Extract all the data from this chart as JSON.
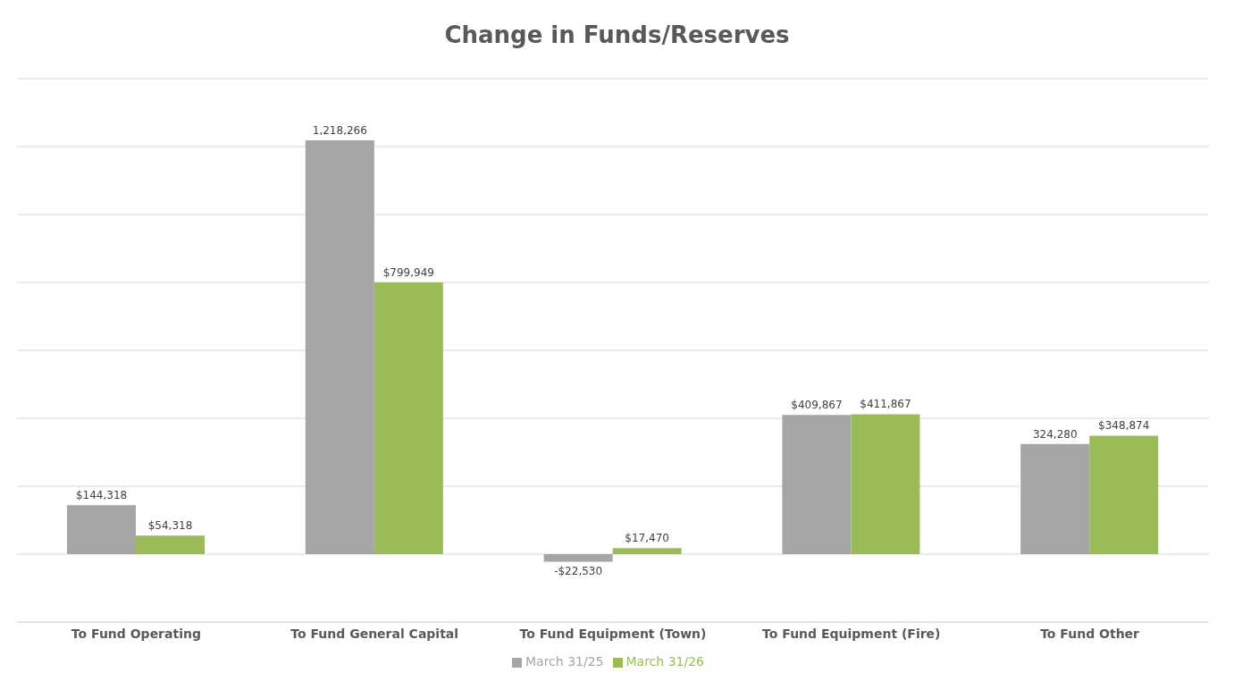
{
  "chart_data": {
    "type": "bar",
    "title": "Change in Funds/Reserves",
    "categories": [
      "To Fund Operating",
      "To Fund General Capital",
      "To Fund Equipment (Town)",
      "To Fund Equipment (Fire)",
      "To Fund Other"
    ],
    "series": [
      {
        "name": "March 31/25",
        "color": "#a5a5a5",
        "values": [
          144318,
          1218266,
          -22530,
          409867,
          324280
        ],
        "value_labels": [
          "$144,318",
          "1,218,266",
          "-$22,530",
          "$409,867",
          "324,280"
        ]
      },
      {
        "name": "March 31/26",
        "color": "#9bbb59",
        "values": [
          54318,
          799949,
          17470,
          411867,
          348874
        ],
        "value_labels": [
          "$54,318",
          "$799,949",
          "$17,470",
          "$411,867",
          "$348,874"
        ]
      }
    ],
    "ylim": [
      -200000,
      1400000
    ],
    "yticks": [
      {
        "value": -200000,
        "label": null
      },
      {
        "value": 0,
        "label": null
      },
      {
        "value": 200000,
        "label": null
      },
      {
        "value": 400000,
        "label": null
      },
      {
        "value": 600000,
        "label": null
      },
      {
        "value": 800000,
        "label": null
      },
      {
        "value": 1000000,
        "label": null
      },
      {
        "value": 1200000,
        "label": null
      },
      {
        "value": 1400000,
        "label": null
      }
    ],
    "tick_labels": "x",
    "grid": "y",
    "legend": "bottom"
  }
}
